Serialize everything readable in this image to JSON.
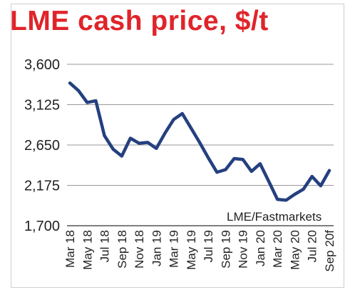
{
  "title": "LME cash price, $/t",
  "source": "LME/Fastmarkets",
  "colors": {
    "title": "#e0242a",
    "line": "#25407f",
    "grid": "#9a9a9a"
  },
  "chart_data": {
    "type": "line",
    "title": "LME cash price, $/t",
    "xlabel": "",
    "ylabel": "",
    "ylim": [
      1700,
      3600
    ],
    "yticks": [
      3600,
      3125,
      2650,
      2175,
      1700
    ],
    "ytick_labels": [
      "3,600",
      "3,125",
      "2,650",
      "2,175",
      "1,700"
    ],
    "grid": true,
    "x_tick_labels": [
      "Mar 18",
      "May 18",
      "Jul 18",
      "Sep 18",
      "Nov 18",
      "Jan 19",
      "Mar 19",
      "May 19",
      "Jul 19",
      "Sep 19",
      "Nov 19",
      "Jan 20",
      "Mar 20",
      "May 20",
      "Jul 20",
      "Sep 20f"
    ],
    "series": [
      {
        "values": [
          3380,
          3290,
          3150,
          3170,
          2760,
          2600,
          2520,
          2730,
          2670,
          2680,
          2610,
          2790,
          2950,
          3020,
          2850,
          2680,
          2500,
          2330,
          2360,
          2490,
          2480,
          2340,
          2430,
          2220,
          2010,
          2000,
          2070,
          2130,
          2280,
          2170,
          2350
        ]
      }
    ],
    "annotation": "LME/Fastmarkets"
  }
}
